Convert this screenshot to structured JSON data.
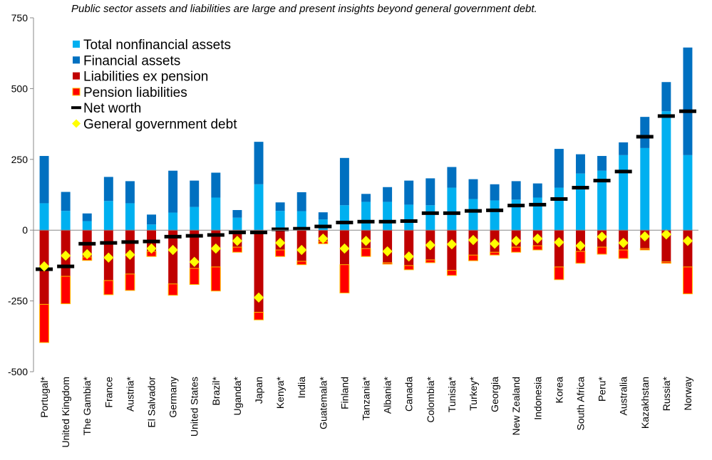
{
  "chart_data": {
    "type": "bar",
    "title": "Public sector assets and liabilities are large and present insights beyond general government debt.",
    "xlabel": "",
    "ylabel": "",
    "ylim": [
      -500,
      750
    ],
    "yticks": [
      -500,
      -250,
      0,
      250,
      500,
      750
    ],
    "ytick_labels": [
      "-500",
      "-250",
      "0",
      "250",
      "500",
      "750"
    ],
    "legend_placement": "top-left",
    "grid": false,
    "categories": [
      "Portugal*",
      "United Kingdom",
      "The Gambia*",
      "France",
      "Austria*",
      "El Salvador",
      "Germany",
      "United States",
      "Brazil*",
      "Uganda*",
      "Japan",
      "Kenya*",
      "India",
      "Guatemala*",
      "Finland",
      "Tanzania*",
      "Albania*",
      "Canada",
      "Colombia*",
      "Tunisia*",
      "Turkey*",
      "Georgia",
      "New Zealand",
      "Indonesia",
      "Korea",
      "South Africa",
      "Peru*",
      "Australia",
      "Kazakhstan",
      "Russia*",
      "Norway"
    ],
    "series": [
      {
        "name": "Total nonfinancial assets",
        "color": "#00B0F0",
        "values": [
          95,
          68,
          32,
          103,
          95,
          20,
          62,
          82,
          115,
          44,
          162,
          68,
          67,
          38,
          88,
          100,
          100,
          90,
          88,
          150,
          110,
          105,
          108,
          115,
          150,
          200,
          210,
          265,
          290,
          420,
          265
        ]
      },
      {
        "name": "Financial assets",
        "color": "#0070C0",
        "values": [
          167,
          67,
          27,
          85,
          78,
          35,
          148,
          93,
          88,
          27,
          150,
          30,
          67,
          25,
          167,
          28,
          52,
          85,
          95,
          73,
          70,
          57,
          65,
          50,
          137,
          68,
          52,
          45,
          110,
          103,
          380
        ]
      },
      {
        "name": "Liabilities ex pension",
        "color": "#C00000",
        "values": [
          -262,
          -163,
          -95,
          -178,
          -155,
          -75,
          -190,
          -135,
          -130,
          -60,
          -290,
          -70,
          -110,
          -40,
          -122,
          -65,
          -115,
          -125,
          -105,
          -142,
          -88,
          -78,
          -60,
          -55,
          -130,
          -75,
          -60,
          -70,
          -65,
          -112,
          -130
        ]
      },
      {
        "name": "Pension liabilities",
        "color": "#FF0000",
        "values": [
          -135,
          -97,
          -12,
          -50,
          -58,
          -18,
          -40,
          -57,
          -85,
          -18,
          -27,
          -23,
          -12,
          -8,
          -100,
          -28,
          -5,
          -15,
          -10,
          -18,
          -20,
          -10,
          -18,
          -15,
          -45,
          -42,
          -25,
          -30,
          -5,
          -5,
          -95
        ]
      },
      {
        "name": "Net worth",
        "color": "#000000",
        "values": [
          -138,
          -128,
          -48,
          -45,
          -42,
          -40,
          -23,
          -20,
          -17,
          -8,
          -8,
          3,
          5,
          13,
          27,
          30,
          30,
          32,
          60,
          60,
          68,
          70,
          87,
          90,
          110,
          150,
          175,
          207,
          330,
          403,
          420
        ]
      },
      {
        "name": "General government debt",
        "color": "#FFFF00",
        "values": [
          -128,
          -90,
          -85,
          -97,
          -87,
          -65,
          -70,
          -112,
          -65,
          -38,
          -238,
          -45,
          -70,
          -30,
          -65,
          -38,
          -75,
          -93,
          -53,
          -50,
          -35,
          -48,
          -38,
          -30,
          -43,
          -55,
          -23,
          -45,
          -22,
          -15,
          -38
        ]
      }
    ]
  }
}
